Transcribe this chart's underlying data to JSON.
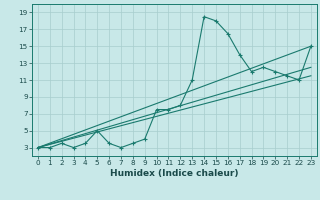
{
  "xlabel": "Humidex (Indice chaleur)",
  "background_color": "#c8e8e8",
  "grid_color": "#a8cece",
  "line_color": "#1a7a6e",
  "xlim": [
    -0.5,
    23.5
  ],
  "ylim": [
    2.0,
    20.0
  ],
  "xticks": [
    0,
    1,
    2,
    3,
    4,
    5,
    6,
    7,
    8,
    9,
    10,
    11,
    12,
    13,
    14,
    15,
    16,
    17,
    18,
    19,
    20,
    21,
    22,
    23
  ],
  "yticks": [
    3,
    5,
    7,
    9,
    11,
    13,
    15,
    17,
    19
  ],
  "line1_x": [
    0,
    1,
    2,
    3,
    4,
    5,
    6,
    7,
    8,
    9,
    10,
    11,
    12,
    13,
    14,
    15,
    16,
    17,
    18,
    19,
    20,
    21,
    22,
    23
  ],
  "line1_y": [
    3,
    3,
    3.5,
    3,
    3.5,
    5,
    3.5,
    3,
    3.5,
    4,
    7.5,
    7.5,
    8,
    11,
    18.5,
    18,
    16.5,
    14,
    12,
    12.5,
    12,
    11.5,
    11,
    15
  ],
  "line2_x": [
    0,
    23
  ],
  "line2_y": [
    3,
    15
  ],
  "line3_x": [
    0,
    23
  ],
  "line3_y": [
    3,
    11.5
  ],
  "line4_x": [
    0,
    23
  ],
  "line4_y": [
    3,
    12.5
  ],
  "xlabel_fontsize": 6.5,
  "tick_fontsize": 5.2,
  "tick_color": "#1a4a4a"
}
